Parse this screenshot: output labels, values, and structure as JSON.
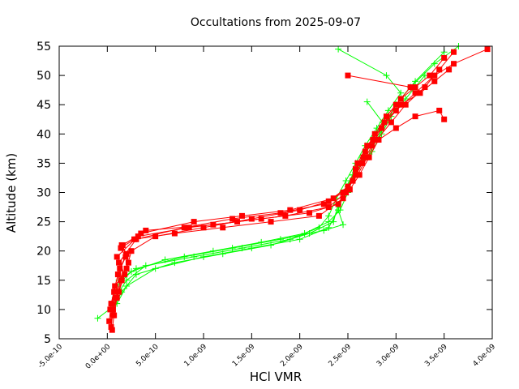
{
  "chart_data": {
    "type": "line",
    "title": "Occultations from 2025-09-07",
    "xlabel": "HCl VMR",
    "ylabel": "Altitude (km)",
    "xlim": [
      -5e-10,
      4e-09
    ],
    "ylim": [
      5,
      55
    ],
    "xticks": [
      -5e-10,
      0,
      5e-10,
      1e-09,
      1.5e-09,
      2e-09,
      2.5e-09,
      3e-09,
      3.5e-09,
      4e-09
    ],
    "xtick_labels": [
      "-5.0e-10",
      "0.0e+00",
      "5.0e-10",
      "1.0e-09",
      "1.5e-09",
      "2.0e-09",
      "2.5e-09",
      "3.0e-09",
      "3.5e-09",
      "4.0e-09"
    ],
    "yticks": [
      5,
      10,
      15,
      20,
      25,
      30,
      35,
      40,
      45,
      50,
      55
    ],
    "ytick_labels": [
      "5",
      "10",
      "15",
      "20",
      "25",
      "30",
      "35",
      "40",
      "45",
      "50",
      "55"
    ],
    "grid": false,
    "legend": "none",
    "series": [
      {
        "name": "red-profiles",
        "color": "#ff0000",
        "marker": "square",
        "profiles": [
          {
            "x": [
              5e-11,
              7e-11,
              1e-10,
              1.5e-10,
              1.2e-10,
              3e-10,
              8e-10,
              1.3e-09,
              1.8e-09,
              2.25e-09,
              2.45e-09,
              2.55e-09,
              2.65e-09,
              2.75e-09,
              2.85e-09,
              3e-09,
              3.2e-09,
              3.4e-09,
              3.6e-09,
              3.95e-09
            ],
            "y": [
              6.5,
              9,
              12,
              15,
              18,
              22,
              24,
              25.5,
              26.5,
              28,
              30,
              32,
              35,
              38,
              41,
              44,
              47,
              50,
              52,
              54.5
            ]
          },
          {
            "x": [
              2e-11,
              4e-11,
              8e-11,
              2e-10,
              2.5e-10,
              5e-10,
              1e-09,
              1.5e-09,
              2e-09,
              2.3e-09,
              2.5e-09,
              2.6e-09,
              2.7e-09,
              2.8e-09,
              2.95e-09,
              3.1e-09,
              3.3e-09,
              3.45e-09,
              3.6e-09
            ],
            "y": [
              8,
              11,
              14,
              17,
              20,
              22.5,
              24,
              25.5,
              27,
              28.5,
              31,
              33,
              36,
              39,
              42,
              45,
              48,
              51,
              54
            ]
          },
          {
            "x": [
              4e-11,
              6e-11,
              1.2e-10,
              1.8e-10,
              1e-10,
              3.5e-10,
              9e-10,
              1.4e-09,
              1.9e-09,
              2.35e-09,
              2.5e-09,
              2.58e-09,
              2.68e-09,
              2.78e-09,
              2.9e-09,
              3.05e-09,
              3.2e-09,
              3.35e-09,
              3.5e-09
            ],
            "y": [
              7,
              10,
              13,
              16,
              19,
              23,
              25,
              26,
              27,
              29,
              31,
              34,
              37,
              40,
              43,
              46,
              48,
              50,
              53
            ]
          },
          {
            "x": [
              6e-11,
              9e-11,
              1.4e-10,
              2.2e-10,
              1.6e-10,
              4e-10,
              1.1e-09,
              1.6e-09,
              2.1e-09,
              2.4e-09,
              2.52e-09,
              2.62e-09,
              2.72e-09,
              2.82e-09,
              3e-09,
              3.2e-09,
              3.45e-09,
              3.5e-09
            ],
            "y": [
              9,
              12,
              15,
              18,
              21,
              23.5,
              24.5,
              25.5,
              26.5,
              28,
              30.5,
              33,
              36,
              39,
              41,
              43,
              44,
              42.5
            ]
          },
          {
            "x": [
              3e-11,
              7e-11,
              1.1e-10,
              1.9e-10,
              1.4e-10,
              2.8e-10,
              7e-10,
              1.2e-09,
              1.7e-09,
              2.2e-09,
              2.45e-09,
              2.55e-09,
              2.6e-09,
              2.7e-09,
              2.85e-09,
              3e-09,
              3.15e-09,
              2.5e-09
            ],
            "y": [
              10,
              13,
              16,
              19,
              20.5,
              22,
              23,
              24,
              25,
              26,
              29,
              32,
              35,
              38,
              41,
              45,
              48,
              50
            ]
          },
          {
            "x": [
              5e-11,
              8e-11,
              1.3e-10,
              2e-10,
              1.5e-10,
              3.2e-10,
              8.5e-10,
              1.35e-09,
              1.85e-09,
              2.3e-09,
              2.48e-09,
              2.58e-09,
              2.66e-09,
              2.76e-09,
              2.88e-09,
              3.05e-09,
              3.25e-09,
              3.4e-09,
              3.55e-09
            ],
            "y": [
              11,
              14,
              17,
              19.5,
              21,
              22.5,
              24,
              25,
              26,
              27.5,
              30,
              33,
              36,
              39,
              42,
              45,
              47,
              49,
              51
            ]
          }
        ]
      },
      {
        "name": "green-profiles",
        "color": "#00ff00",
        "marker": "plus",
        "profiles": [
          {
            "x": [
              -1e-10,
              1e-10,
              2e-10,
              5e-10,
              1e-09,
              1.5e-09,
              2e-09,
              2.3e-09,
              2.4e-09,
              2.45e-09,
              2.55e-09,
              2.7e-09,
              2.8e-09,
              2.9e-09,
              3e-09,
              3.2e-09,
              3.5e-09
            ],
            "y": [
              8.5,
              11,
              14,
              17,
              19,
              20.5,
              22,
              24,
              27,
              30,
              33,
              36,
              39,
              42,
              45,
              49,
              54
            ]
          },
          {
            "x": [
              5e-11,
              1.5e-10,
              3e-10,
              7e-10,
              1.2e-09,
              1.7e-09,
              2.1e-09,
              2.35e-09,
              2.4e-09,
              2.5e-09,
              2.6e-09,
              2.75e-09,
              2.85e-09,
              2.95e-09,
              3.1e-09,
              3.3e-09
            ],
            "y": [
              10,
              13,
              16,
              18,
              19.5,
              21,
              23,
              25,
              28,
              31,
              34,
              37,
              40,
              43,
              46,
              50
            ]
          },
          {
            "x": [
              8e-11,
              2e-10,
              4e-10,
              9e-10,
              1.4e-09,
              1.9e-09,
              2.2e-09,
              2.3e-09,
              2.38e-09,
              2.48e-09,
              2.58e-09,
              2.68e-09,
              2.8e-09,
              2.92e-09,
              3.05e-09,
              2.9e-09,
              2.4e-09
            ],
            "y": [
              12,
              15,
              17.5,
              19,
              20.5,
              22,
              24,
              26,
              29,
              32,
              35,
              38,
              41,
              44,
              47,
              50,
              54.5
            ]
          },
          {
            "x": [
              1e-10,
              2.5e-10,
              6e-10,
              1.1e-09,
              1.6e-09,
              2.05e-09,
              2.3e-09,
              2.42e-09,
              2.5e-09,
              2.55e-09,
              2.65e-09,
              2.78e-09,
              2.9e-09,
              3e-09,
              3.15e-09,
              3.4e-09,
              3.65e-09
            ],
            "y": [
              14,
              16.5,
              18.5,
              20,
              21.5,
              23,
              25,
              27,
              30,
              33,
              36,
              39,
              42,
              45,
              48,
              52,
              55
            ]
          },
          {
            "x": [
              1.2e-10,
              3e-10,
              8e-10,
              1.3e-09,
              1.8e-09,
              2.25e-09,
              2.45e-09,
              2.4e-09,
              2.46e-09,
              2.56e-09,
              2.66e-09,
              2.76e-09,
              2.86e-09,
              2.7e-09
            ],
            "y": [
              15,
              17,
              19,
              20.5,
              22,
              23.5,
              24.5,
              27,
              30,
              33,
              36,
              39,
              42,
              45.5
            ]
          }
        ]
      }
    ]
  }
}
